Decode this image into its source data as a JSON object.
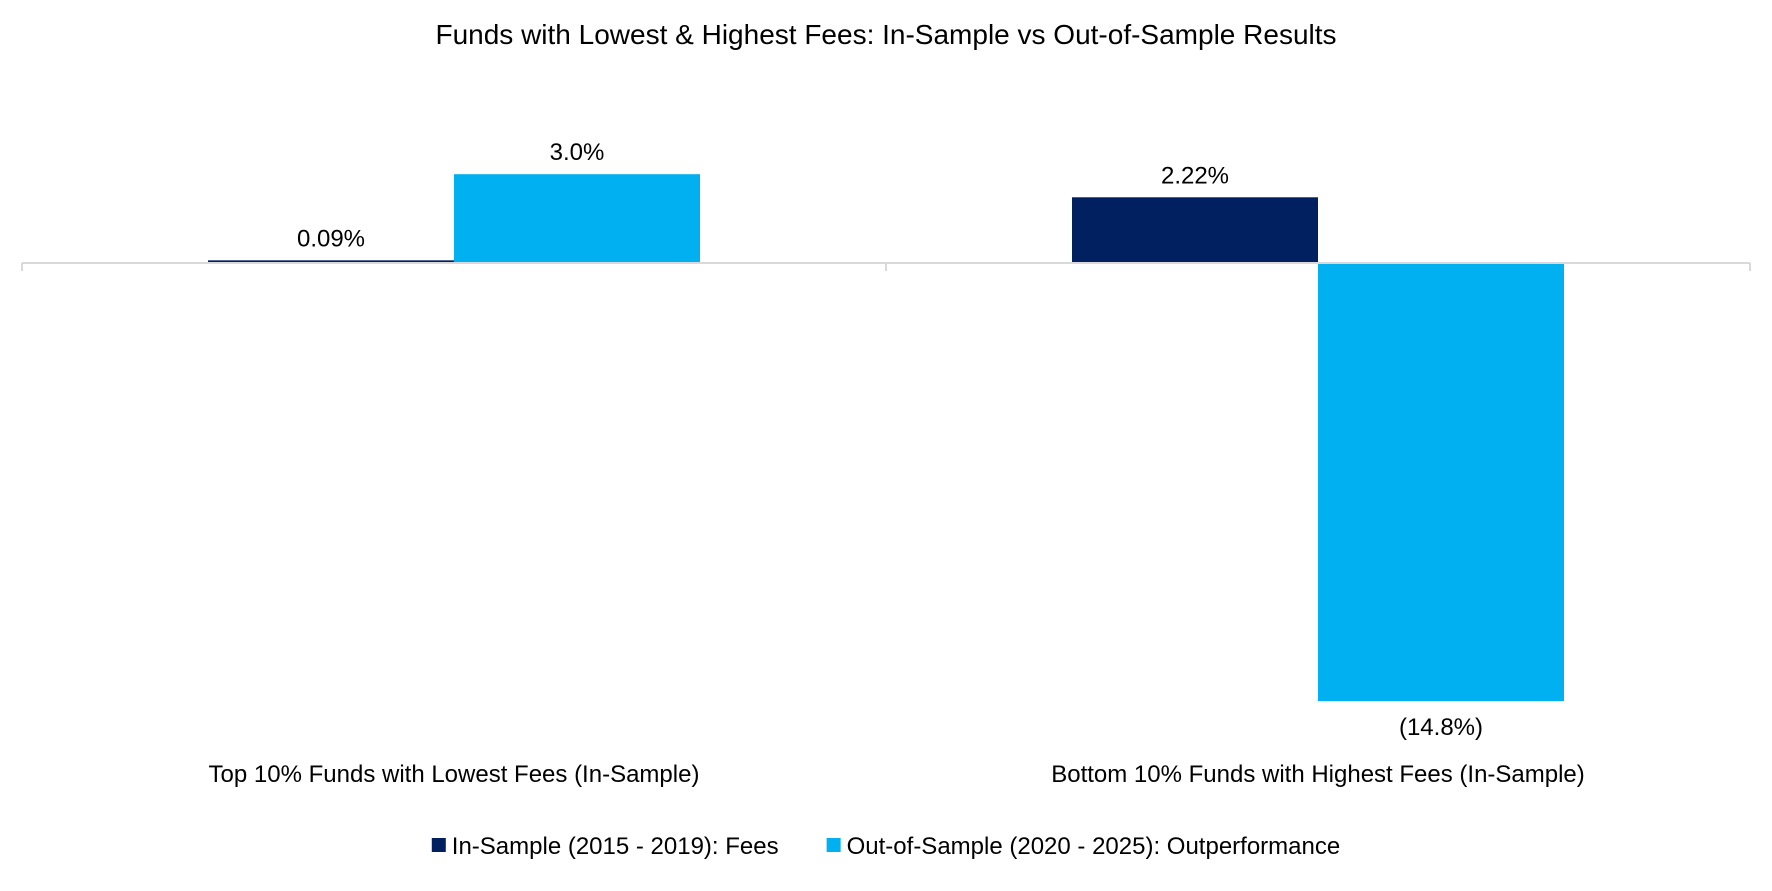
{
  "chart_data": {
    "type": "bar",
    "title": "Funds with Lowest & Highest Fees: In-Sample vs Out-of-Sample Results",
    "categories": [
      "Top 10% Funds with Lowest Fees (In-Sample)",
      "Bottom 10% Funds with Highest Fees (In-Sample)"
    ],
    "series": [
      {
        "name": "In-Sample (2015 - 2019): Fees",
        "color": "#002060",
        "values": [
          0.09,
          2.22
        ],
        "labels": [
          "0.09%",
          "2.22%"
        ]
      },
      {
        "name": "Out-of-Sample (2020 - 2025): Outperformance",
        "color": "#00B0F0",
        "values": [
          3.0,
          -14.8
        ],
        "labels": [
          "3.0%",
          "(14.8%)"
        ]
      }
    ],
    "ylim": [
      -14.8,
      3.0
    ],
    "grid": false,
    "legend_position": "bottom"
  }
}
